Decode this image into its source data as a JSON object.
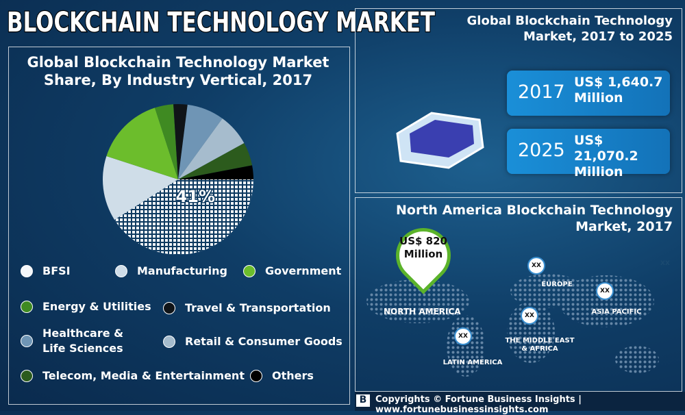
{
  "header": {
    "title": "BLOCKCHAIN TECHNOLOGY MARKET"
  },
  "chart_data": {
    "type": "pie",
    "title": "Global Blockchain Technology Market Share, By Industry Vertical, 2017",
    "categories": [
      "BFSI",
      "Manufacturing",
      "Government",
      "Energy & Utilities",
      "Travel & Transportation",
      "Healthcare & Life Sciences",
      "Retail & Consumer Goods",
      "Telecom, Media & Entertainment",
      "Others"
    ],
    "values": [
      41,
      14,
      15,
      4,
      3,
      8,
      7,
      5,
      3
    ],
    "value_labels": [
      "41%",
      null,
      null,
      null,
      null,
      null,
      null,
      null,
      null
    ],
    "colors": [
      "#f4f7fa",
      "#cfdde8",
      "#6cbd2c",
      "#3f8a22",
      "#101418",
      "#6f95b5",
      "#a6bccd",
      "#2c5b1d",
      "#000000"
    ]
  },
  "market": {
    "title": "Global Blockchain Technology Market, 2017 to 2025",
    "stats": [
      {
        "year": "2017",
        "value": "US$ 1,640.7 Million"
      },
      {
        "year": "2025",
        "value": "US$ 21,070.2 Million"
      }
    ]
  },
  "north_america": {
    "title": "North America Blockchain Technology Market, 2017",
    "callout": "US$ 820 Million",
    "region": "NORTH AMERICA",
    "others": [
      {
        "name": "EUROPE",
        "marker": "XX"
      },
      {
        "name": "ASIA PACIFIC",
        "marker": "XX"
      },
      {
        "name": "THE MIDDLE EAST & AFRICA",
        "marker": "XX"
      },
      {
        "name": "LATIN AMERICA",
        "marker": "XX"
      }
    ],
    "extra_marker": "XX"
  },
  "footer": {
    "text": "Copyrights © Fortune Business Insights | www.fortunebusinessinsights.com"
  }
}
